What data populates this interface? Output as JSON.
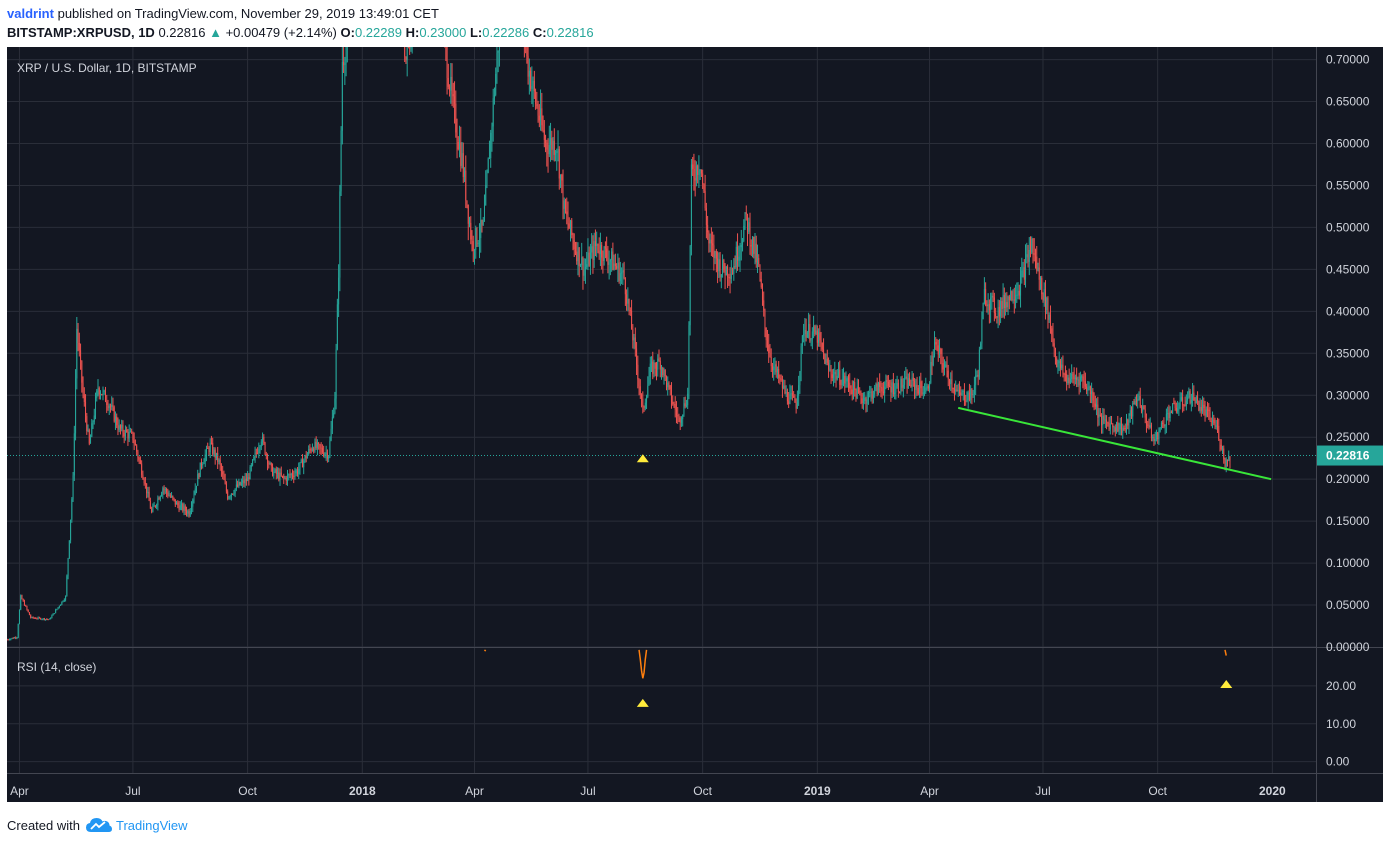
{
  "header": {
    "author": "valdrint",
    "published_text": "published on TradingView.com, November 29, 2019 13:49:01 CET",
    "symbol": "BITSTAMP:XRPUSD, 1D",
    "last": "0.22816",
    "change": "+0.00479 (+2.14%)",
    "o_label": "O:",
    "o_value": "0.22289",
    "h_label": "H:",
    "h_value": "0.23000",
    "l_label": "L:",
    "l_value": "0.22286",
    "c_label": "C:",
    "c_value": "0.22816"
  },
  "footer": {
    "created_with": "Created with",
    "brand": "TradingView"
  },
  "colors": {
    "background": "#131722",
    "grid": "#2a2e39",
    "up": "#26a69a",
    "down": "#ef5350",
    "trendline": "#39e639",
    "marker": "#ffeb3b",
    "rsi_line": "#ff7f0e",
    "text": "#d1d4dc"
  },
  "chart_data": {
    "type": "candlestick",
    "title": "XRP / U.S. Dollar, 1D, BITSTAMP",
    "price_axis": {
      "ticks": [
        "0.70000",
        "0.65000",
        "0.60000",
        "0.55000",
        "0.50000",
        "0.45000",
        "0.40000",
        "0.35000",
        "0.30000",
        "0.25000",
        "0.20000",
        "0.15000",
        "0.10000",
        "0.05000",
        "0.00000"
      ],
      "range": [
        0,
        0.715
      ]
    },
    "last_price": 0.22816,
    "last_price_label": "0.22816",
    "time_axis": {
      "labels": [
        {
          "text": "Apr",
          "date": "2017-04-01"
        },
        {
          "text": "Jul",
          "date": "2017-07-01"
        },
        {
          "text": "Oct",
          "date": "2017-10-01"
        },
        {
          "text": "2018",
          "date": "2018-01-01",
          "bold": true
        },
        {
          "text": "Apr",
          "date": "2018-04-01"
        },
        {
          "text": "Jul",
          "date": "2018-07-01"
        },
        {
          "text": "Oct",
          "date": "2018-10-01"
        },
        {
          "text": "2019",
          "date": "2019-01-01",
          "bold": true
        },
        {
          "text": "Apr",
          "date": "2019-04-01"
        },
        {
          "text": "Jul",
          "date": "2019-07-01"
        },
        {
          "text": "Oct",
          "date": "2019-10-01"
        },
        {
          "text": "2020",
          "date": "2020-01-01",
          "bold": true
        }
      ],
      "range": [
        "2017-03-22",
        "2020-02-05"
      ]
    },
    "price_path": [
      [
        "2017-03-22",
        0.009
      ],
      [
        "2017-03-30",
        0.012
      ],
      [
        "2017-04-02",
        0.06
      ],
      [
        "2017-04-10",
        0.035
      ],
      [
        "2017-04-25",
        0.033
      ],
      [
        "2017-05-08",
        0.06
      ],
      [
        "2017-05-14",
        0.2
      ],
      [
        "2017-05-17",
        0.38
      ],
      [
        "2017-05-22",
        0.3
      ],
      [
        "2017-05-27",
        0.24
      ],
      [
        "2017-06-03",
        0.31
      ],
      [
        "2017-06-12",
        0.29
      ],
      [
        "2017-06-20",
        0.26
      ],
      [
        "2017-07-01",
        0.25
      ],
      [
        "2017-07-10",
        0.2
      ],
      [
        "2017-07-16",
        0.16
      ],
      [
        "2017-07-25",
        0.19
      ],
      [
        "2017-08-05",
        0.17
      ],
      [
        "2017-08-15",
        0.16
      ],
      [
        "2017-08-25",
        0.22
      ],
      [
        "2017-09-01",
        0.24
      ],
      [
        "2017-09-08",
        0.22
      ],
      [
        "2017-09-15",
        0.18
      ],
      [
        "2017-09-22",
        0.19
      ],
      [
        "2017-10-01",
        0.2
      ],
      [
        "2017-10-12",
        0.25
      ],
      [
        "2017-10-20",
        0.21
      ],
      [
        "2017-10-30",
        0.2
      ],
      [
        "2017-11-10",
        0.21
      ],
      [
        "2017-11-22",
        0.24
      ],
      [
        "2017-12-05",
        0.23
      ],
      [
        "2017-12-10",
        0.3
      ],
      [
        "2017-12-13",
        0.45
      ],
      [
        "2017-12-16",
        0.7
      ],
      [
        "2018-01-05",
        0.85
      ],
      [
        "2018-01-25",
        0.9
      ],
      [
        "2018-02-05",
        0.7
      ],
      [
        "2018-02-28",
        0.9
      ],
      [
        "2018-03-08",
        0.72
      ],
      [
        "2018-03-14",
        0.65
      ],
      [
        "2018-03-22",
        0.58
      ],
      [
        "2018-03-30",
        0.48
      ],
      [
        "2018-04-08",
        0.5
      ],
      [
        "2018-04-20",
        0.72
      ],
      [
        "2018-05-03",
        0.88
      ],
      [
        "2018-05-13",
        0.7
      ],
      [
        "2018-05-20",
        0.65
      ],
      [
        "2018-05-28",
        0.6
      ],
      [
        "2018-06-06",
        0.6
      ],
      [
        "2018-06-12",
        0.52
      ],
      [
        "2018-06-20",
        0.48
      ],
      [
        "2018-06-28",
        0.45
      ],
      [
        "2018-07-08",
        0.48
      ],
      [
        "2018-07-20",
        0.46
      ],
      [
        "2018-07-30",
        0.44
      ],
      [
        "2018-08-07",
        0.36
      ],
      [
        "2018-08-14",
        0.28
      ],
      [
        "2018-08-20",
        0.33
      ],
      [
        "2018-08-28",
        0.34
      ],
      [
        "2018-09-05",
        0.3
      ],
      [
        "2018-09-12",
        0.27
      ],
      [
        "2018-09-19",
        0.3
      ],
      [
        "2018-09-22",
        0.56
      ],
      [
        "2018-09-29",
        0.58
      ],
      [
        "2018-10-06",
        0.48
      ],
      [
        "2018-10-16",
        0.45
      ],
      [
        "2018-10-25",
        0.45
      ],
      [
        "2018-11-05",
        0.51
      ],
      [
        "2018-11-10",
        0.48
      ],
      [
        "2018-11-15",
        0.45
      ],
      [
        "2018-11-20",
        0.38
      ],
      [
        "2018-11-25",
        0.34
      ],
      [
        "2018-12-07",
        0.3
      ],
      [
        "2018-12-15",
        0.29
      ],
      [
        "2018-12-21",
        0.38
      ],
      [
        "2019-01-01",
        0.37
      ],
      [
        "2019-01-10",
        0.33
      ],
      [
        "2019-01-25",
        0.315
      ],
      [
        "2019-02-07",
        0.295
      ],
      [
        "2019-02-20",
        0.31
      ],
      [
        "2019-03-05",
        0.31
      ],
      [
        "2019-03-15",
        0.315
      ],
      [
        "2019-03-30",
        0.305
      ],
      [
        "2019-04-05",
        0.36
      ],
      [
        "2019-04-14",
        0.33
      ],
      [
        "2019-04-24",
        0.3
      ],
      [
        "2019-05-05",
        0.3
      ],
      [
        "2019-05-10",
        0.33
      ],
      [
        "2019-05-15",
        0.42
      ],
      [
        "2019-05-25",
        0.4
      ],
      [
        "2019-06-05",
        0.42
      ],
      [
        "2019-06-12",
        0.43
      ],
      [
        "2019-06-22",
        0.48
      ],
      [
        "2019-06-28",
        0.44
      ],
      [
        "2019-07-05",
        0.4
      ],
      [
        "2019-07-12",
        0.34
      ],
      [
        "2019-07-20",
        0.32
      ],
      [
        "2019-08-01",
        0.32
      ],
      [
        "2019-08-10",
        0.3
      ],
      [
        "2019-08-16",
        0.27
      ],
      [
        "2019-08-25",
        0.265
      ],
      [
        "2019-09-05",
        0.26
      ],
      [
        "2019-09-15",
        0.3
      ],
      [
        "2019-09-22",
        0.27
      ],
      [
        "2019-09-28",
        0.245
      ],
      [
        "2019-10-10",
        0.28
      ],
      [
        "2019-10-20",
        0.29
      ],
      [
        "2019-10-28",
        0.3
      ],
      [
        "2019-11-08",
        0.28
      ],
      [
        "2019-11-18",
        0.26
      ],
      [
        "2019-11-24",
        0.22
      ],
      [
        "2019-11-29",
        0.228
      ]
    ],
    "trendline": [
      [
        "2019-04-24",
        0.285
      ],
      [
        "2019-12-31",
        0.2
      ]
    ],
    "markers": [
      {
        "pane": "price",
        "date": "2018-08-14",
        "value": 0.225
      },
      {
        "pane": "rsi",
        "date": "2018-08-14",
        "value": 15.5
      },
      {
        "pane": "rsi",
        "date": "2019-11-25",
        "value": 20.5
      }
    ],
    "rsi": {
      "label": "RSI (14, close)",
      "ticks": [
        "20.00",
        "10.00",
        "0.00"
      ],
      "range": [
        -3,
        30
      ],
      "segments": [
        [
          [
            "2018-04-09",
            29.5
          ],
          [
            "2018-04-10",
            29.2
          ]
        ],
        [
          [
            "2018-08-11",
            29.5
          ],
          [
            "2018-08-12",
            27.0
          ],
          [
            "2018-08-13",
            24.0
          ],
          [
            "2018-08-14",
            22.0
          ],
          [
            "2018-08-15",
            23.5
          ],
          [
            "2018-08-16",
            27.0
          ],
          [
            "2018-08-17",
            29.5
          ]
        ],
        [
          [
            "2019-11-24",
            29.5
          ],
          [
            "2019-11-25",
            28.0
          ]
        ]
      ]
    }
  }
}
